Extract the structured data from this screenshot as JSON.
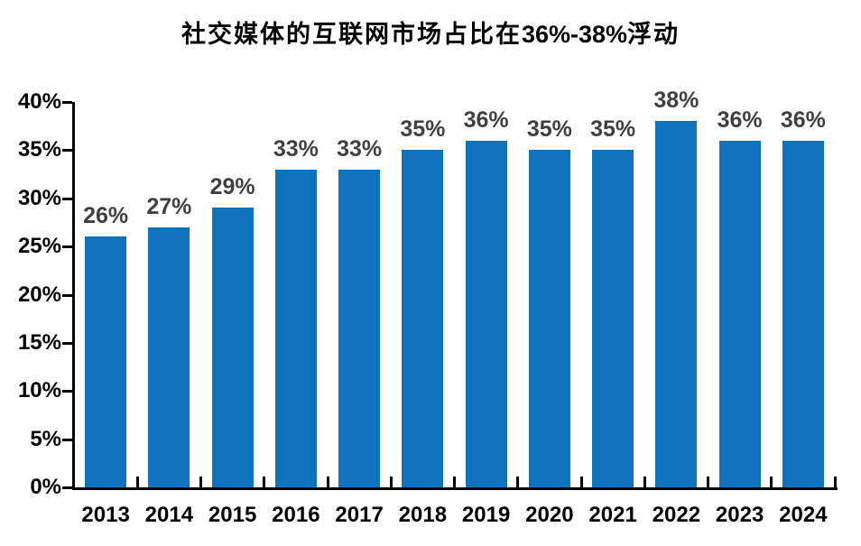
{
  "title": {
    "prefix": "社交媒体的互联网市场占比在",
    "highlight": "36%-38%",
    "suffix": "浮动"
  },
  "colors": {
    "bar": "#0E72BC",
    "data_label": "#404040",
    "axis": "#000000",
    "title": "#000000"
  },
  "chart_data": {
    "type": "bar",
    "title": "社交媒体的互联网市场占比在36%-38%浮动",
    "categories": [
      "2013",
      "2014",
      "2015",
      "2016",
      "2017",
      "2018",
      "2019",
      "2020",
      "2021",
      "2022",
      "2023",
      "2024"
    ],
    "values": [
      26,
      27,
      29,
      33,
      33,
      35,
      36,
      35,
      35,
      38,
      36,
      36
    ],
    "data_labels": [
      "26%",
      "27%",
      "29%",
      "33%",
      "33%",
      "35%",
      "36%",
      "35%",
      "35%",
      "38%",
      "36%",
      "36%"
    ],
    "xlabel": "",
    "ylabel": "",
    "ylim": [
      0,
      40
    ],
    "ytick_step": 5,
    "ytick_labels": [
      "0%",
      "5%",
      "10%",
      "15%",
      "20%",
      "25%",
      "30%",
      "35%",
      "40%"
    ],
    "grid": false,
    "legend": false
  }
}
